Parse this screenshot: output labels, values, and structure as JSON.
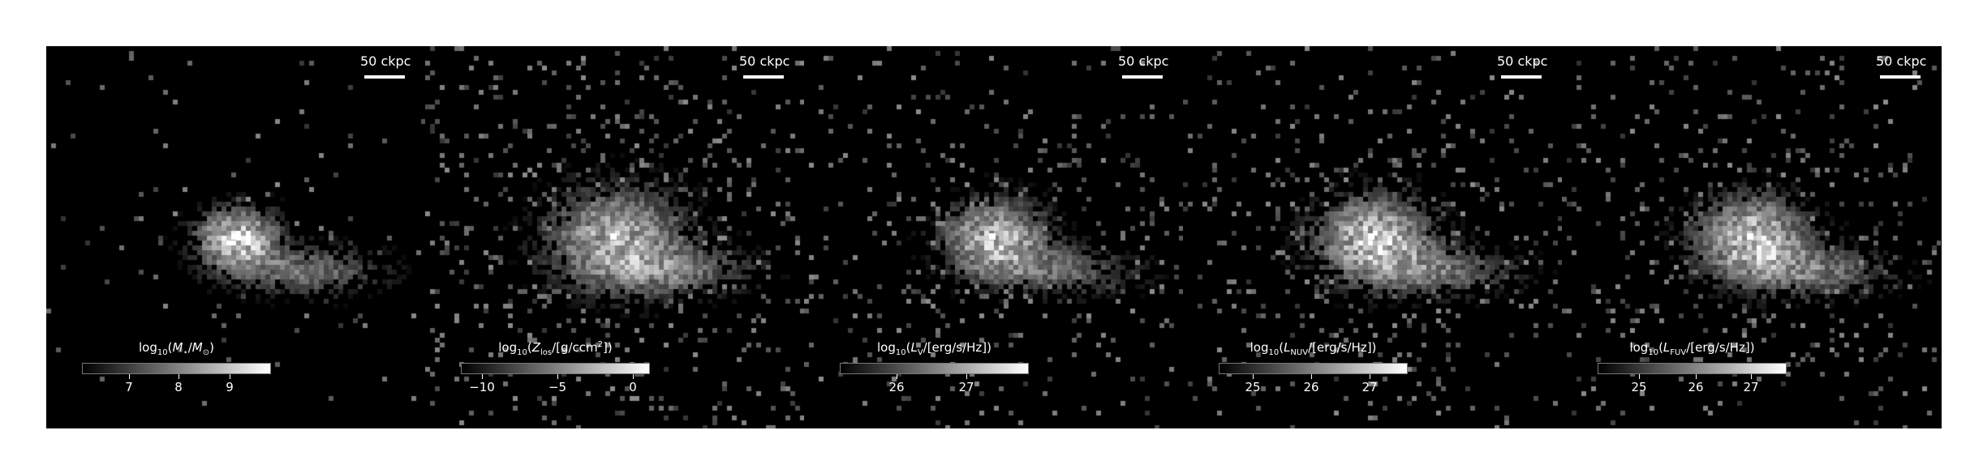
{
  "figure": {
    "panels": [
      {
        "id": "stellar-mass",
        "scale_bar_label": "50 ckpc",
        "colorbar_label_html": "log<sub>10</sub>(<i>M</i><sub>&#8902;</sub>/<i>M</i><sub>&#8857;</sub>)",
        "colorbar_ticks": [
          {
            "value": "7",
            "frac": 0.25
          },
          {
            "value": "8",
            "frac": 0.51
          },
          {
            "value": "9",
            "frac": 0.78
          }
        ],
        "appearance": {
          "core_brightness": 1.0,
          "noise_density": 0.05,
          "spread": 0.8
        }
      },
      {
        "id": "line-of-sight-metallicity",
        "scale_bar_label": "50 ckpc",
        "colorbar_label_html": "log<sub>10</sub>(<i>Z</i><sub>los</sub>/[g/ccm<sup>2</sup>])",
        "colorbar_ticks": [
          {
            "value": "−10",
            "frac": 0.11
          },
          {
            "value": "−5",
            "frac": 0.51
          },
          {
            "value": "0",
            "frac": 0.91
          }
        ],
        "appearance": {
          "core_brightness": 0.85,
          "noise_density": 0.25,
          "spread": 1.3
        }
      },
      {
        "id": "v-band-luminosity",
        "scale_bar_label": "50 ckpc",
        "colorbar_label_html": "log<sub>10</sub>(<i>L</i><sub>V</sub>/[erg/s/Hz])",
        "colorbar_ticks": [
          {
            "value": "26",
            "frac": 0.3
          },
          {
            "value": "27",
            "frac": 0.67
          }
        ],
        "appearance": {
          "core_brightness": 0.9,
          "noise_density": 0.2,
          "spread": 1.0
        }
      },
      {
        "id": "nuv-luminosity",
        "scale_bar_label": "50 ckpc",
        "colorbar_label_html": "log<sub>10</sub>(<i>L</i><sub>NUV</sub>/[erg/s/Hz])",
        "colorbar_ticks": [
          {
            "value": "25",
            "frac": 0.18
          },
          {
            "value": "26",
            "frac": 0.49
          },
          {
            "value": "27",
            "frac": 0.8
          }
        ],
        "appearance": {
          "core_brightness": 0.95,
          "noise_density": 0.22,
          "spread": 1.1
        }
      },
      {
        "id": "fuv-luminosity",
        "scale_bar_label": "50 ckpc",
        "colorbar_label_html": "log<sub>10</sub>(<i>L</i><sub>FUV</sub>/[erg/s/Hz])",
        "colorbar_ticks": [
          {
            "value": "25",
            "frac": 0.22
          },
          {
            "value": "26",
            "frac": 0.52
          },
          {
            "value": "27",
            "frac": 0.81
          }
        ],
        "appearance": {
          "core_brightness": 0.95,
          "noise_density": 0.22,
          "spread": 1.1
        }
      }
    ]
  }
}
